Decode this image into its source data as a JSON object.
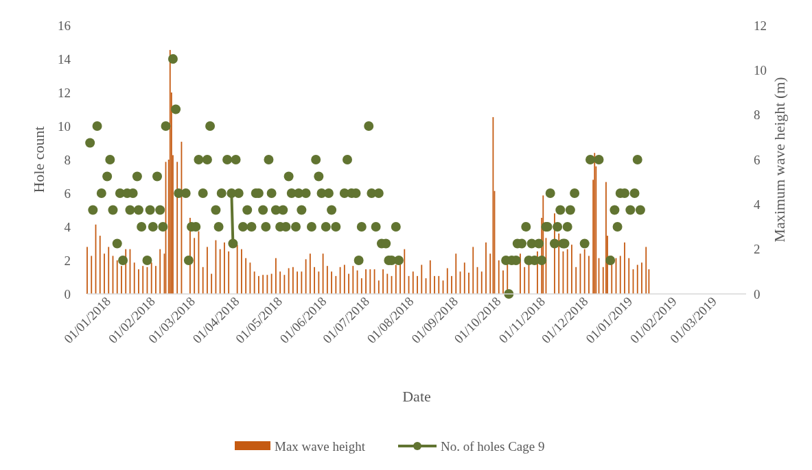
{
  "chart_data": {
    "type": "bar",
    "xlabel": "Date",
    "ylabel": "Hole count",
    "y2label": "Maximum wave height (m)",
    "xlim": [
      "2018-01-01",
      "2019-04-07"
    ],
    "xticks": [
      {
        "value": "2018-01-01",
        "label": "01/01/2018"
      },
      {
        "value": "2018-02-01",
        "label": "01/02/2018"
      },
      {
        "value": "2018-03-01",
        "label": "01/03/2018"
      },
      {
        "value": "2018-04-01",
        "label": "01/04/2018"
      },
      {
        "value": "2018-05-01",
        "label": "01/05/2018"
      },
      {
        "value": "2018-06-01",
        "label": "01/06/2018"
      },
      {
        "value": "2018-07-01",
        "label": "01/07/2018"
      },
      {
        "value": "2018-08-01",
        "label": "01/08/2018"
      },
      {
        "value": "2018-09-01",
        "label": "01/09/2018"
      },
      {
        "value": "2018-10-01",
        "label": "01/10/2018"
      },
      {
        "value": "2018-11-01",
        "label": "01/11/2018"
      },
      {
        "value": "2018-12-01",
        "label": "01/12/2018"
      },
      {
        "value": "2019-01-01",
        "label": "01/01/2019"
      },
      {
        "value": "2019-02-01",
        "label": "01/02/2019"
      },
      {
        "value": "2019-03-01",
        "label": "01/03/2019"
      }
    ],
    "ylim": [
      0,
      16
    ],
    "yticks": [
      0,
      2,
      4,
      6,
      8,
      10,
      12,
      14,
      16
    ],
    "y2lim": [
      0,
      12
    ],
    "y2ticks": [
      0,
      2,
      4,
      6,
      8,
      10,
      12
    ],
    "legend": "bottom",
    "series": [
      {
        "name": "Max wave height",
        "axis": "y2",
        "color": "#c55a11",
        "x": [
          "2018-01-01",
          "2018-01-04",
          "2018-01-07",
          "2018-01-10",
          "2018-01-13",
          "2018-01-16",
          "2018-01-19",
          "2018-01-22",
          "2018-01-25",
          "2018-01-28",
          "2018-01-31",
          "2018-02-03",
          "2018-02-06",
          "2018-02-09",
          "2018-02-12",
          "2018-02-15",
          "2018-02-18",
          "2018-02-21",
          "2018-02-24",
          "2018-02-25",
          "2018-02-27",
          "2018-02-28",
          "2018-03-01",
          "2018-03-02",
          "2018-03-05",
          "2018-03-08",
          "2018-03-14",
          "2018-03-17",
          "2018-03-20",
          "2018-03-23",
          "2018-03-26",
          "2018-03-29",
          "2018-04-01",
          "2018-04-04",
          "2018-04-07",
          "2018-04-10",
          "2018-04-16",
          "2018-04-19",
          "2018-04-22",
          "2018-04-25",
          "2018-04-28",
          "2018-05-01",
          "2018-05-04",
          "2018-05-07",
          "2018-05-10",
          "2018-05-13",
          "2018-05-16",
          "2018-05-19",
          "2018-05-22",
          "2018-05-25",
          "2018-05-28",
          "2018-05-31",
          "2018-06-03",
          "2018-06-06",
          "2018-06-09",
          "2018-06-12",
          "2018-06-15",
          "2018-06-18",
          "2018-06-21",
          "2018-06-24",
          "2018-06-27",
          "2018-06-30",
          "2018-07-03",
          "2018-07-06",
          "2018-07-09",
          "2018-07-12",
          "2018-07-15",
          "2018-07-18",
          "2018-07-21",
          "2018-07-24",
          "2018-07-27",
          "2018-07-30",
          "2018-08-02",
          "2018-08-05",
          "2018-08-08",
          "2018-08-11",
          "2018-08-14",
          "2018-08-17",
          "2018-08-20",
          "2018-08-23",
          "2018-08-26",
          "2018-08-29",
          "2018-09-01",
          "2018-09-04",
          "2018-09-07",
          "2018-09-10",
          "2018-09-13",
          "2018-09-16",
          "2018-09-19",
          "2018-09-22",
          "2018-09-25",
          "2018-09-28",
          "2018-10-01",
          "2018-10-04",
          "2018-10-07",
          "2018-10-10",
          "2018-10-12",
          "2018-10-13",
          "2018-10-16",
          "2018-10-19",
          "2018-10-22",
          "2018-10-31",
          "2018-11-03",
          "2018-11-06",
          "2018-11-12",
          "2018-11-15",
          "2018-11-16",
          "2018-11-18",
          "2018-11-24",
          "2018-11-27",
          "2018-11-30",
          "2018-12-03",
          "2018-12-06",
          "2018-12-09",
          "2018-12-12",
          "2018-12-15",
          "2018-12-18",
          "2018-12-21",
          "2018-12-22",
          "2018-12-23",
          "2018-12-25",
          "2018-12-28",
          "2018-12-30",
          "2018-12-31",
          "2019-01-03",
          "2019-01-06",
          "2019-01-09",
          "2019-01-12",
          "2019-01-15",
          "2019-01-18",
          "2019-01-21",
          "2019-01-24",
          "2019-01-27",
          "2019-01-29"
        ],
        "values": [
          2.1,
          1.7,
          3.1,
          2.6,
          1.8,
          2.1,
          1.7,
          1.5,
          1.25,
          2.0,
          2.0,
          1.4,
          1.1,
          1.25,
          1.2,
          1.4,
          1.25,
          2.0,
          1.8,
          5.9,
          6.0,
          10.9,
          9.0,
          6.2,
          5.9,
          6.8,
          3.4,
          2.5,
          2.8,
          1.2,
          2.1,
          0.9,
          2.4,
          2.0,
          2.3,
          1.9,
          2.2,
          2.0,
          1.6,
          1.4,
          1.0,
          0.8,
          0.85,
          0.85,
          0.9,
          1.6,
          1.0,
          0.85,
          1.15,
          1.2,
          1.0,
          1.0,
          1.55,
          1.8,
          1.2,
          1.0,
          1.8,
          1.25,
          1.0,
          0.8,
          1.2,
          1.3,
          0.9,
          1.25,
          1.05,
          0.7,
          1.1,
          1.1,
          1.1,
          0.6,
          1.1,
          0.9,
          0.8,
          1.3,
          1.4,
          2.0,
          0.8,
          1.0,
          0.8,
          1.3,
          0.7,
          1.5,
          0.8,
          0.8,
          0.6,
          1.15,
          0.8,
          1.8,
          1.0,
          1.4,
          0.95,
          2.1,
          1.2,
          1.0,
          2.3,
          1.8,
          7.9,
          4.6,
          1.5,
          1.05,
          1.4,
          1.8,
          1.2,
          1.3,
          1.9,
          3.4,
          4.4,
          2.5,
          3.6,
          2.7,
          1.9,
          2.0,
          2.2,
          1.2,
          1.8,
          2.0,
          1.7,
          5.1,
          6.3,
          5.7,
          1.6,
          1.2,
          5.0,
          2.6,
          1.7,
          1.6,
          1.7,
          2.3,
          1.6,
          1.1,
          1.3,
          1.4,
          2.1,
          1.1
        ]
      },
      {
        "name": "No. of holes Cage 9",
        "type": "scatter",
        "marker": "circle",
        "color": "#617431",
        "x": [
          "2018-01-03",
          "2018-01-05",
          "2018-01-08",
          "2018-01-11",
          "2018-01-15",
          "2018-01-17",
          "2018-01-19",
          "2018-01-22",
          "2018-01-24",
          "2018-01-26",
          "2018-01-29",
          "2018-01-31",
          "2018-02-02",
          "2018-02-05",
          "2018-02-06",
          "2018-02-08",
          "2018-02-12",
          "2018-02-14",
          "2018-02-16",
          "2018-02-19",
          "2018-02-21",
          "2018-02-23",
          "2018-02-25",
          "2018-03-02",
          "2018-03-04",
          "2018-03-06",
          "2018-03-11",
          "2018-03-13",
          "2018-03-15",
          "2018-03-18",
          "2018-03-20",
          "2018-03-23",
          "2018-03-26",
          "2018-03-28",
          "2018-04-01",
          "2018-04-03",
          "2018-04-05",
          "2018-04-09",
          "2018-04-15",
          "2018-04-17",
          "2018-04-20",
          "2018-04-23",
          "2018-04-26",
          "2018-04-29",
          "2018-05-01",
          "2018-05-04",
          "2018-05-06",
          "2018-05-08",
          "2018-05-10",
          "2018-05-13",
          "2018-05-16",
          "2018-05-18",
          "2018-05-20",
          "2018-05-22",
          "2018-05-24",
          "2018-05-27",
          "2018-05-29",
          "2018-05-31",
          "2018-06-03",
          "2018-06-07",
          "2018-06-10",
          "2018-06-12",
          "2018-06-14",
          "2018-06-17",
          "2018-06-19",
          "2018-06-21",
          "2018-06-24",
          "2018-06-30",
          "2018-07-02",
          "2018-07-05",
          "2018-07-08",
          "2018-07-10",
          "2018-07-12",
          "2018-07-17",
          "2018-07-19",
          "2018-07-22",
          "2018-07-24",
          "2018-07-26",
          "2018-07-29",
          "2018-07-31",
          "2018-08-02",
          "2018-08-05",
          "2018-08-07",
          "2018-10-21",
          "2018-10-23",
          "2018-10-25",
          "2018-10-28",
          "2018-10-29",
          "2018-11-01",
          "2018-11-04",
          "2018-11-06",
          "2018-11-08",
          "2018-11-10",
          "2018-11-13",
          "2018-11-15",
          "2018-11-18",
          "2018-11-19",
          "2018-11-21",
          "2018-11-24",
          "2018-11-26",
          "2018-11-28",
          "2018-11-30",
          "2018-12-01",
          "2018-12-03",
          "2018-12-05",
          "2018-12-08",
          "2018-12-15",
          "2018-12-19",
          "2018-12-25",
          "2019-01-02",
          "2019-01-05",
          "2019-01-07",
          "2019-01-09",
          "2019-01-12",
          "2019-01-16",
          "2019-01-19",
          "2019-01-21",
          "2019-01-23"
        ],
        "values": [
          9,
          5,
          10,
          6,
          7,
          8,
          5,
          3,
          6,
          2,
          6,
          5,
          6,
          7,
          5,
          4,
          2,
          5,
          4,
          7,
          5,
          4,
          10,
          14,
          11,
          6,
          6,
          2,
          4,
          4,
          8,
          6,
          8,
          10,
          5,
          4,
          6,
          8,
          8,
          6,
          4,
          5,
          4,
          6,
          6,
          5,
          4,
          8,
          6,
          5,
          4,
          5,
          4,
          7,
          6,
          4,
          6,
          5,
          6,
          4,
          8,
          7,
          6,
          4,
          6,
          5,
          4,
          6,
          8,
          6,
          6,
          2,
          4,
          10,
          6,
          4,
          6,
          3,
          3,
          2,
          2,
          4,
          2,
          2,
          0,
          2,
          2,
          3,
          3,
          4,
          2,
          3,
          2,
          3,
          2,
          4,
          4,
          6,
          3,
          4,
          5,
          3,
          3,
          4,
          5,
          6,
          3,
          8,
          8,
          2,
          5,
          4,
          6,
          6,
          5,
          6,
          8,
          5
        ]
      },
      {
        "type": "line",
        "marker": "circle",
        "line_style": "solid",
        "color": "#617431",
        "x": [
          "2018-04-12",
          "2018-04-13"
        ],
        "values": [
          6,
          3
        ]
      }
    ]
  }
}
